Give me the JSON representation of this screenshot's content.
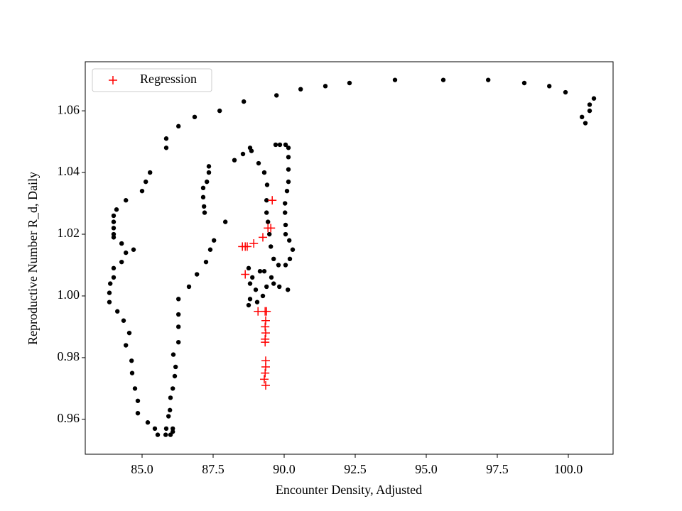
{
  "chart_data": {
    "type": "scatter",
    "xlabel": "Encounter Density, Adjusted",
    "ylabel": "Reproductive Number R_d, Daily",
    "xlim": [
      83.0,
      101.575
    ],
    "ylim": [
      0.9487,
      1.0759
    ],
    "xticks": [
      {
        "value": 85,
        "label": "85.0"
      },
      87.5,
      {
        "value": 90,
        "label": "90.0"
      },
      92.5,
      {
        "value": 95,
        "label": "95.0"
      },
      97.5,
      {
        "value": 100,
        "label": "100.0"
      }
    ],
    "yticks": [
      0.96,
      0.98,
      {
        "value": 1,
        "label": "1.00"
      },
      1.02,
      1.04,
      1.06
    ],
    "grid": false,
    "legend": "upper left",
    "series": [
      {
        "color": "#000000",
        "marker": "dot",
        "x": [
          100.9,
          100.75,
          100.75,
          100.6,
          100.48,
          99.9,
          99.33,
          98.45,
          97.18,
          95.6,
          93.9,
          92.3,
          91.45,
          90.58,
          89.73,
          88.58,
          87.73,
          86.85,
          86.28,
          85.85,
          85.85,
          85.28,
          85.13,
          85.0,
          84.43,
          84.1,
          84.0,
          84.0,
          84.0,
          84.0,
          84.0,
          84.28,
          84.43,
          84.7,
          84.28,
          84.0,
          84.0,
          83.88,
          83.85,
          83.85,
          84.13,
          84.35,
          84.55,
          84.43,
          84.63,
          84.65,
          84.75,
          84.85,
          84.85,
          85.2,
          85.45,
          85.55,
          85.83,
          86.0,
          86.08,
          86.08,
          85.85,
          85.93,
          85.98,
          86.0,
          86.08,
          86.15,
          86.18,
          86.1,
          86.28,
          86.28,
          86.28,
          86.28,
          86.65,
          86.93,
          87.25,
          87.4,
          87.53,
          87.93,
          87.2,
          87.18,
          87.15,
          87.15,
          87.28,
          87.35,
          87.35,
          88.25,
          88.55,
          88.8,
          88.85,
          89.1,
          89.3,
          89.4,
          89.38,
          89.38,
          89.43,
          89.48,
          89.53,
          89.63,
          89.8,
          90.05,
          90.2,
          90.3,
          90.18,
          90.05,
          90.05,
          90.03,
          90.03,
          90.1,
          90.15,
          90.15,
          90.15,
          90.15,
          90.05,
          89.85,
          89.7,
          88.75,
          88.88,
          88.8,
          89.0,
          88.8,
          88.75,
          89.05,
          89.25,
          89.38,
          89.55,
          89.3,
          89.15,
          89.63,
          89.83,
          90.13
        ],
        "values": [
          1.064,
          1.062,
          1.06,
          1.056,
          1.058,
          1.066,
          1.068,
          1.069,
          1.07,
          1.07,
          1.07,
          1.069,
          1.068,
          1.067,
          1.065,
          1.063,
          1.06,
          1.058,
          1.055,
          1.051,
          1.048,
          1.04,
          1.037,
          1.034,
          1.031,
          1.028,
          1.026,
          1.024,
          1.022,
          1.02,
          1.019,
          1.017,
          1.014,
          1.015,
          1.011,
          1.009,
          1.006,
          1.004,
          1.001,
          0.998,
          0.995,
          0.992,
          0.988,
          0.984,
          0.979,
          0.975,
          0.97,
          0.966,
          0.962,
          0.959,
          0.957,
          0.955,
          0.955,
          0.955,
          0.956,
          0.957,
          0.957,
          0.961,
          0.963,
          0.967,
          0.97,
          0.974,
          0.977,
          0.981,
          0.985,
          0.99,
          0.994,
          0.999,
          1.003,
          1.007,
          1.011,
          1.015,
          1.018,
          1.024,
          1.027,
          1.029,
          1.032,
          1.035,
          1.037,
          1.04,
          1.042,
          1.044,
          1.046,
          1.048,
          1.047,
          1.043,
          1.04,
          1.036,
          1.031,
          1.027,
          1.024,
          1.02,
          1.016,
          1.012,
          1.01,
          1.01,
          1.012,
          1.015,
          1.018,
          1.02,
          1.023,
          1.027,
          1.03,
          1.034,
          1.037,
          1.041,
          1.045,
          1.048,
          1.049,
          1.049,
          1.049,
          1.009,
          1.006,
          1.004,
          1.002,
          0.999,
          0.997,
          0.998,
          1.0,
          1.003,
          1.006,
          1.008,
          1.008,
          1.004,
          1.003,
          1.002
        ]
      },
      {
        "name": "Regression",
        "color": "#ff0000",
        "marker": "plus",
        "x": [
          89.58,
          89.53,
          89.43,
          89.25,
          88.93,
          88.7,
          88.53,
          88.63,
          89.08,
          89.33,
          89.38,
          89.35,
          89.33,
          89.35,
          89.33,
          89.33,
          89.35,
          89.35,
          89.33,
          89.3,
          89.35,
          88.63
        ],
        "values": [
          1.031,
          1.022,
          1.022,
          1.019,
          1.017,
          1.016,
          1.016,
          1.016,
          0.995,
          0.995,
          0.995,
          0.992,
          0.99,
          0.988,
          0.986,
          0.985,
          0.979,
          0.977,
          0.975,
          0.973,
          0.971,
          1.007
        ]
      }
    ]
  }
}
